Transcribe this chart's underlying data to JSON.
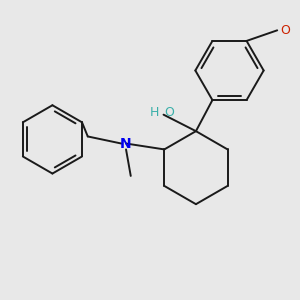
{
  "background_color": "#e8e8e8",
  "bond_color": "#1a1a1a",
  "N_color": "#0000ee",
  "O_color": "#cc2200",
  "OH_color": "#3aafa9",
  "figsize": [
    3.0,
    3.0
  ],
  "dpi": 100,
  "bond_lw": 1.4,
  "xlim": [
    -2.5,
    2.5
  ],
  "ylim": [
    -2.5,
    2.5
  ]
}
